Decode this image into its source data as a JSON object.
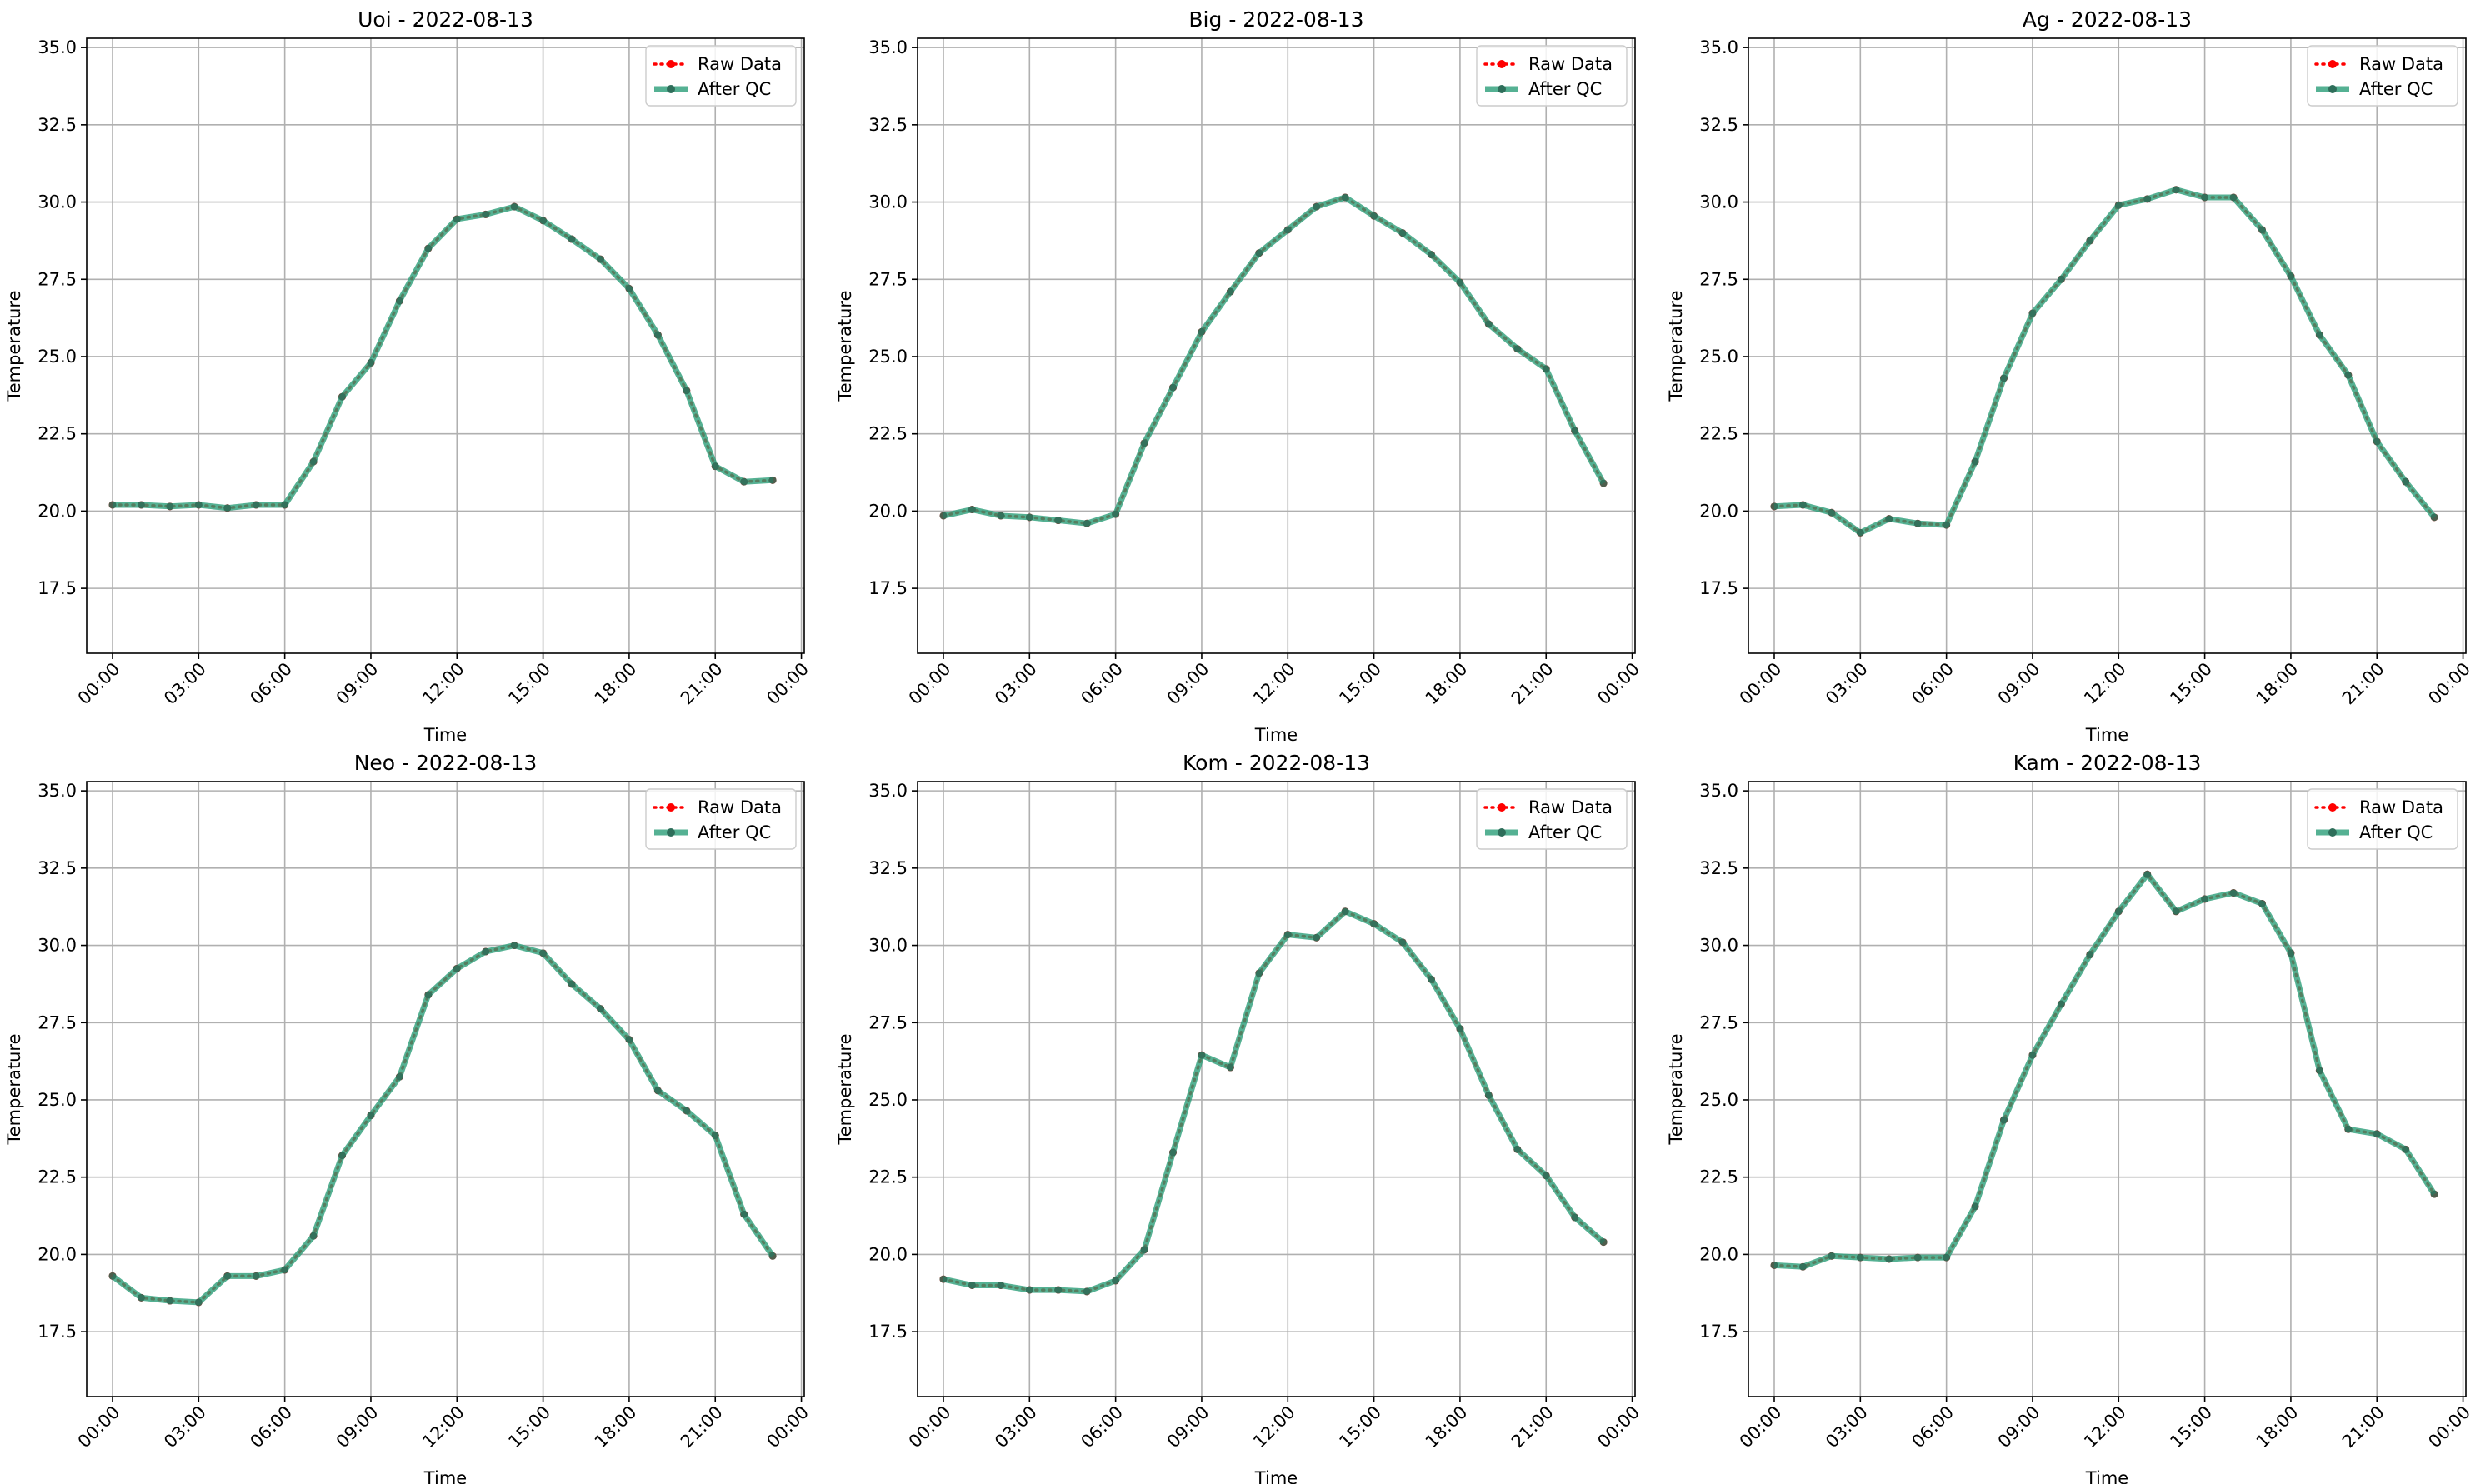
{
  "chart_data": [
    {
      "type": "line",
      "title": "Uoi - 2022-08-13",
      "xlabel": "Time",
      "ylabel": "Temperature",
      "ylim": [
        15.4,
        35.3
      ],
      "xlim": [
        -0.9,
        24.1
      ],
      "xtick_labels": [
        "00:00",
        "03:00",
        "06:00",
        "09:00",
        "12:00",
        "15:00",
        "18:00",
        "21:00",
        "00:00"
      ],
      "ytick_labels": [
        "17.5",
        "20.0",
        "22.5",
        "25.0",
        "27.5",
        "30.0",
        "32.5",
        "35.0"
      ],
      "grid": true,
      "legend_position": "upper right",
      "x": [
        "00:00",
        "01:00",
        "02:00",
        "03:00",
        "04:00",
        "05:00",
        "06:00",
        "07:00",
        "08:00",
        "09:00",
        "10:00",
        "11:00",
        "12:00",
        "13:00",
        "14:00",
        "15:00",
        "16:00",
        "17:00",
        "18:00",
        "19:00",
        "20:00",
        "21:00",
        "22:00",
        "23:00"
      ],
      "series": [
        {
          "name": "Raw Data",
          "color": "#ff0000",
          "values": [
            20.2,
            20.2,
            20.15,
            20.2,
            20.1,
            20.2,
            20.2,
            21.6,
            23.7,
            24.8,
            26.8,
            28.5,
            29.45,
            29.6,
            29.85,
            29.4,
            28.8,
            28.15,
            27.2,
            25.7,
            23.9,
            21.45,
            20.95,
            21.0
          ]
        },
        {
          "name": "After QC",
          "color": "#2a9d78",
          "values": [
            20.2,
            20.2,
            20.15,
            20.2,
            20.1,
            20.2,
            20.2,
            21.6,
            23.7,
            24.8,
            26.8,
            28.5,
            29.45,
            29.6,
            29.85,
            29.4,
            28.8,
            28.15,
            27.2,
            25.7,
            23.9,
            21.45,
            20.95,
            21.0
          ]
        }
      ]
    },
    {
      "type": "line",
      "title": "Big - 2022-08-13",
      "xlabel": "Time",
      "ylabel": "Temperature",
      "ylim": [
        15.4,
        35.3
      ],
      "xlim": [
        -0.9,
        24.1
      ],
      "xtick_labels": [
        "00:00",
        "03:00",
        "06:00",
        "09:00",
        "12:00",
        "15:00",
        "18:00",
        "21:00",
        "00:00"
      ],
      "ytick_labels": [
        "17.5",
        "20.0",
        "22.5",
        "25.0",
        "27.5",
        "30.0",
        "32.5",
        "35.0"
      ],
      "grid": true,
      "legend_position": "upper right",
      "x": [
        "00:00",
        "01:00",
        "02:00",
        "03:00",
        "04:00",
        "05:00",
        "06:00",
        "07:00",
        "08:00",
        "09:00",
        "10:00",
        "11:00",
        "12:00",
        "13:00",
        "14:00",
        "15:00",
        "16:00",
        "17:00",
        "18:00",
        "19:00",
        "20:00",
        "21:00",
        "22:00",
        "23:00"
      ],
      "series": [
        {
          "name": "Raw Data",
          "color": "#ff0000",
          "values": [
            19.85,
            20.05,
            19.85,
            19.8,
            19.7,
            19.6,
            19.9,
            22.2,
            24.0,
            25.8,
            27.1,
            28.35,
            29.1,
            29.85,
            30.15,
            29.55,
            29.0,
            28.3,
            27.4,
            26.05,
            25.25,
            24.6,
            22.6,
            20.9
          ]
        },
        {
          "name": "After QC",
          "color": "#2a9d78",
          "values": [
            19.85,
            20.05,
            19.85,
            19.8,
            19.7,
            19.6,
            19.9,
            22.2,
            24.0,
            25.8,
            27.1,
            28.35,
            29.1,
            29.85,
            30.15,
            29.55,
            29.0,
            28.3,
            27.4,
            26.05,
            25.25,
            24.6,
            22.6,
            20.9
          ]
        }
      ]
    },
    {
      "type": "line",
      "title": "Ag - 2022-08-13",
      "xlabel": "Time",
      "ylabel": "Temperature",
      "ylim": [
        15.4,
        35.3
      ],
      "xlim": [
        -0.9,
        24.1
      ],
      "xtick_labels": [
        "00:00",
        "03:00",
        "06:00",
        "09:00",
        "12:00",
        "15:00",
        "18:00",
        "21:00",
        "00:00"
      ],
      "ytick_labels": [
        "17.5",
        "20.0",
        "22.5",
        "25.0",
        "27.5",
        "30.0",
        "32.5",
        "35.0"
      ],
      "grid": true,
      "legend_position": "upper right",
      "x": [
        "00:00",
        "01:00",
        "02:00",
        "03:00",
        "04:00",
        "05:00",
        "06:00",
        "07:00",
        "08:00",
        "09:00",
        "10:00",
        "11:00",
        "12:00",
        "13:00",
        "14:00",
        "15:00",
        "16:00",
        "17:00",
        "18:00",
        "19:00",
        "20:00",
        "21:00",
        "22:00",
        "23:00"
      ],
      "series": [
        {
          "name": "Raw Data",
          "color": "#ff0000",
          "values": [
            20.15,
            20.2,
            19.95,
            19.3,
            19.75,
            19.6,
            19.55,
            21.6,
            24.3,
            26.4,
            27.5,
            28.75,
            29.9,
            30.1,
            30.4,
            30.15,
            30.15,
            29.1,
            27.6,
            25.7,
            24.4,
            22.25,
            20.95,
            19.8
          ]
        },
        {
          "name": "After QC",
          "color": "#2a9d78",
          "values": [
            20.15,
            20.2,
            19.95,
            19.3,
            19.75,
            19.6,
            19.55,
            21.6,
            24.3,
            26.4,
            27.5,
            28.75,
            29.9,
            30.1,
            30.4,
            30.15,
            30.15,
            29.1,
            27.6,
            25.7,
            24.4,
            22.25,
            20.95,
            19.8
          ]
        }
      ]
    },
    {
      "type": "line",
      "title": "Neo - 2022-08-13",
      "xlabel": "Time",
      "ylabel": "Temperature",
      "ylim": [
        15.4,
        35.3
      ],
      "xlim": [
        -0.9,
        24.1
      ],
      "xtick_labels": [
        "00:00",
        "03:00",
        "06:00",
        "09:00",
        "12:00",
        "15:00",
        "18:00",
        "21:00",
        "00:00"
      ],
      "ytick_labels": [
        "17.5",
        "20.0",
        "22.5",
        "25.0",
        "27.5",
        "30.0",
        "32.5",
        "35.0"
      ],
      "grid": true,
      "legend_position": "upper right",
      "x": [
        "00:00",
        "01:00",
        "02:00",
        "03:00",
        "04:00",
        "05:00",
        "06:00",
        "07:00",
        "08:00",
        "09:00",
        "10:00",
        "11:00",
        "12:00",
        "13:00",
        "14:00",
        "15:00",
        "16:00",
        "17:00",
        "18:00",
        "19:00",
        "20:00",
        "21:00",
        "22:00",
        "23:00"
      ],
      "series": [
        {
          "name": "Raw Data",
          "color": "#ff0000",
          "values": [
            19.3,
            18.6,
            18.5,
            18.45,
            19.3,
            19.3,
            19.5,
            20.6,
            23.2,
            24.5,
            25.75,
            28.4,
            29.25,
            29.8,
            30.0,
            29.75,
            28.75,
            27.95,
            26.95,
            25.3,
            24.65,
            23.85,
            21.3,
            19.95
          ]
        },
        {
          "name": "After QC",
          "color": "#2a9d78",
          "values": [
            19.3,
            18.6,
            18.5,
            18.45,
            19.3,
            19.3,
            19.5,
            20.6,
            23.2,
            24.5,
            25.75,
            28.4,
            29.25,
            29.8,
            30.0,
            29.75,
            28.75,
            27.95,
            26.95,
            25.3,
            24.65,
            23.85,
            21.3,
            19.95
          ]
        }
      ]
    },
    {
      "type": "line",
      "title": "Kom - 2022-08-13",
      "xlabel": "Time",
      "ylabel": "Temperature",
      "ylim": [
        15.4,
        35.3
      ],
      "xlim": [
        -0.9,
        24.1
      ],
      "xtick_labels": [
        "00:00",
        "03:00",
        "06:00",
        "09:00",
        "12:00",
        "15:00",
        "18:00",
        "21:00",
        "00:00"
      ],
      "ytick_labels": [
        "17.5",
        "20.0",
        "22.5",
        "25.0",
        "27.5",
        "30.0",
        "32.5",
        "35.0"
      ],
      "grid": true,
      "legend_position": "upper right",
      "x": [
        "00:00",
        "01:00",
        "02:00",
        "03:00",
        "04:00",
        "05:00",
        "06:00",
        "07:00",
        "08:00",
        "09:00",
        "10:00",
        "11:00",
        "12:00",
        "13:00",
        "14:00",
        "15:00",
        "16:00",
        "17:00",
        "18:00",
        "19:00",
        "20:00",
        "21:00",
        "22:00",
        "23:00"
      ],
      "series": [
        {
          "name": "Raw Data",
          "color": "#ff0000",
          "values": [
            19.2,
            19.0,
            19.0,
            18.85,
            18.85,
            18.8,
            19.15,
            20.15,
            23.3,
            26.45,
            26.05,
            29.1,
            30.35,
            30.25,
            31.1,
            30.7,
            30.1,
            28.9,
            27.3,
            25.15,
            23.4,
            22.55,
            21.2,
            20.4
          ]
        },
        {
          "name": "After QC",
          "color": "#2a9d78",
          "values": [
            19.2,
            19.0,
            19.0,
            18.85,
            18.85,
            18.8,
            19.15,
            20.15,
            23.3,
            26.45,
            26.05,
            29.1,
            30.35,
            30.25,
            31.1,
            30.7,
            30.1,
            28.9,
            27.3,
            25.15,
            23.4,
            22.55,
            21.2,
            20.4
          ]
        }
      ]
    },
    {
      "type": "line",
      "title": "Kam - 2022-08-13",
      "xlabel": "Time",
      "ylabel": "Temperature",
      "ylim": [
        15.4,
        35.3
      ],
      "xlim": [
        -0.9,
        24.1
      ],
      "xtick_labels": [
        "00:00",
        "03:00",
        "06:00",
        "09:00",
        "12:00",
        "15:00",
        "18:00",
        "21:00",
        "00:00"
      ],
      "ytick_labels": [
        "17.5",
        "20.0",
        "22.5",
        "25.0",
        "27.5",
        "30.0",
        "32.5",
        "35.0"
      ],
      "grid": true,
      "legend_position": "upper right",
      "x": [
        "00:00",
        "01:00",
        "02:00",
        "03:00",
        "04:00",
        "05:00",
        "06:00",
        "07:00",
        "08:00",
        "09:00",
        "10:00",
        "11:00",
        "12:00",
        "13:00",
        "14:00",
        "15:00",
        "16:00",
        "17:00",
        "18:00",
        "19:00",
        "20:00",
        "21:00",
        "22:00",
        "23:00"
      ],
      "series": [
        {
          "name": "Raw Data",
          "color": "#ff0000",
          "values": [
            19.65,
            19.6,
            19.95,
            19.9,
            19.85,
            19.9,
            19.9,
            21.55,
            24.35,
            26.45,
            28.1,
            29.7,
            31.1,
            32.3,
            31.1,
            31.5,
            31.7,
            31.35,
            29.75,
            25.95,
            24.05,
            23.9,
            23.4,
            21.95
          ]
        },
        {
          "name": "After QC",
          "color": "#2a9d78",
          "values": [
            19.65,
            19.6,
            19.95,
            19.9,
            19.85,
            19.9,
            19.9,
            21.55,
            24.35,
            26.45,
            28.1,
            29.7,
            31.1,
            32.3,
            31.1,
            31.5,
            31.7,
            31.35,
            29.75,
            25.95,
            24.05,
            23.9,
            23.4,
            21.95
          ]
        }
      ]
    }
  ]
}
